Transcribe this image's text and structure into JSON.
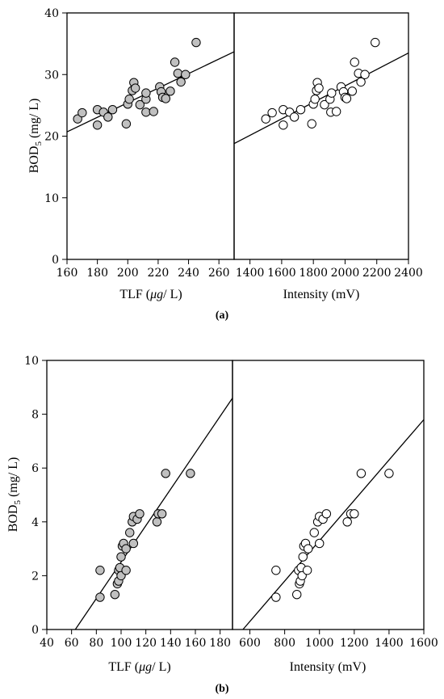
{
  "chart_data": [
    {
      "id": "a-left",
      "panel": "(a)",
      "type": "scatter",
      "xlabel": "TLF (μg/ L)",
      "xlabel_parts": {
        "pre": "TLF (",
        "unit": "μg",
        "post": "/ L)"
      },
      "ylabel": "BOD5 (mg/ L)",
      "ylabel_parts": {
        "pre": "BOD",
        "sub": "5",
        "post": " (mg/ L)"
      },
      "xlim": [
        160,
        270
      ],
      "ylim": [
        0,
        40
      ],
      "xticks": [
        160,
        180,
        200,
        220,
        240,
        260
      ],
      "yticks": [
        0,
        10,
        20,
        30,
        40
      ],
      "marker_fill": "#c0c0c0",
      "points": [
        [
          167,
          22.8
        ],
        [
          170,
          23.8
        ],
        [
          180,
          24.3
        ],
        [
          184,
          23.9
        ],
        [
          187,
          23.1
        ],
        [
          190,
          24.3
        ],
        [
          180,
          21.8
        ],
        [
          199,
          22.0
        ],
        [
          200,
          25.2
        ],
        [
          201,
          26.0
        ],
        [
          203,
          27.4
        ],
        [
          204,
          28.7
        ],
        [
          205,
          27.8
        ],
        [
          208,
          25.1
        ],
        [
          212,
          23.9
        ],
        [
          212,
          26.0
        ],
        [
          212,
          27.0
        ],
        [
          217,
          24.0
        ],
        [
          221,
          28.0
        ],
        [
          222,
          27.2
        ],
        [
          223,
          26.3
        ],
        [
          225,
          26.1
        ],
        [
          228,
          27.3
        ],
        [
          231,
          32.0
        ],
        [
          233,
          30.2
        ],
        [
          235,
          28.8
        ],
        [
          238,
          30.0
        ],
        [
          245,
          35.2
        ]
      ],
      "trendline": [
        [
          160,
          20.7
        ],
        [
          270,
          33.7
        ]
      ]
    },
    {
      "id": "a-right",
      "panel": "(a)",
      "type": "scatter",
      "xlabel": "Intensity (mV)",
      "xlim": [
        1300,
        2400
      ],
      "ylim": [
        0,
        40
      ],
      "xticks": [
        1400,
        1600,
        1800,
        2000,
        2200,
        2400
      ],
      "marker_fill": "#ffffff",
      "points": [
        [
          1500,
          22.8
        ],
        [
          1540,
          23.8
        ],
        [
          1610,
          24.3
        ],
        [
          1650,
          23.9
        ],
        [
          1680,
          23.1
        ],
        [
          1720,
          24.3
        ],
        [
          1610,
          21.8
        ],
        [
          1790,
          22.0
        ],
        [
          1800,
          25.2
        ],
        [
          1810,
          26.0
        ],
        [
          1820,
          27.4
        ],
        [
          1825,
          28.7
        ],
        [
          1835,
          27.8
        ],
        [
          1870,
          25.1
        ],
        [
          1910,
          23.9
        ],
        [
          1905,
          26.0
        ],
        [
          1915,
          27.0
        ],
        [
          1945,
          24.0
        ],
        [
          1975,
          28.0
        ],
        [
          1990,
          27.2
        ],
        [
          2000,
          26.3
        ],
        [
          2010,
          26.1
        ],
        [
          2045,
          27.3
        ],
        [
          2060,
          32.0
        ],
        [
          2085,
          30.2
        ],
        [
          2100,
          28.8
        ],
        [
          2125,
          30.0
        ],
        [
          2190,
          35.2
        ]
      ],
      "trendline": [
        [
          1300,
          18.8
        ],
        [
          2400,
          33.5
        ]
      ]
    },
    {
      "id": "b-left",
      "panel": "(b)",
      "type": "scatter",
      "xlabel": "TLF (μg/ L)",
      "xlabel_parts": {
        "pre": "TLF (",
        "unit": "μg",
        "post": "/ L)"
      },
      "ylabel": "BOD5 (mg/ L)",
      "ylabel_parts": {
        "pre": "BOD",
        "sub": "5",
        "post": " (mg/ L)"
      },
      "xlim": [
        40,
        190
      ],
      "ylim": [
        0,
        10
      ],
      "xticks": [
        40,
        60,
        80,
        100,
        120,
        140,
        160,
        180
      ],
      "yticks": [
        0,
        2,
        4,
        6,
        8,
        10
      ],
      "marker_fill": "#c0c0c0",
      "points": [
        [
          83,
          1.2
        ],
        [
          83,
          2.2
        ],
        [
          95,
          1.3
        ],
        [
          97,
          1.7
        ],
        [
          98,
          1.8
        ],
        [
          98,
          2.2
        ],
        [
          99,
          2.3
        ],
        [
          100,
          2.0
        ],
        [
          100,
          2.7
        ],
        [
          101,
          3.1
        ],
        [
          102,
          3.2
        ],
        [
          104,
          2.2
        ],
        [
          104,
          3.0
        ],
        [
          107,
          3.6
        ],
        [
          109,
          4.0
        ],
        [
          110,
          4.2
        ],
        [
          110,
          3.2
        ],
        [
          113,
          4.1
        ],
        [
          115,
          4.3
        ],
        [
          129,
          4.0
        ],
        [
          130,
          4.3
        ],
        [
          133,
          4.3
        ],
        [
          136,
          5.8
        ],
        [
          156,
          5.8
        ]
      ],
      "trendline": [
        [
          63,
          0.0
        ],
        [
          190,
          8.6
        ]
      ]
    },
    {
      "id": "b-right",
      "panel": "(b)",
      "type": "scatter",
      "xlabel": "Intensity (mV)",
      "xlim": [
        500,
        1600
      ],
      "ylim": [
        0,
        10
      ],
      "xticks": [
        600,
        800,
        1000,
        1200,
        1400,
        1600
      ],
      "marker_fill": "#ffffff",
      "points": [
        [
          750,
          1.2
        ],
        [
          750,
          2.2
        ],
        [
          870,
          1.3
        ],
        [
          885,
          1.7
        ],
        [
          890,
          1.8
        ],
        [
          880,
          2.2
        ],
        [
          895,
          2.3
        ],
        [
          900,
          2.0
        ],
        [
          905,
          2.7
        ],
        [
          910,
          3.1
        ],
        [
          920,
          3.2
        ],
        [
          930,
          2.2
        ],
        [
          935,
          3.0
        ],
        [
          970,
          3.6
        ],
        [
          990,
          4.0
        ],
        [
          1000,
          4.2
        ],
        [
          1000,
          3.2
        ],
        [
          1020,
          4.1
        ],
        [
          1040,
          4.3
        ],
        [
          1160,
          4.0
        ],
        [
          1180,
          4.3
        ],
        [
          1200,
          4.3
        ],
        [
          1240,
          5.8
        ],
        [
          1400,
          5.8
        ]
      ],
      "trendline": [
        [
          560,
          0.0
        ],
        [
          1600,
          7.8
        ]
      ]
    }
  ],
  "captions": {
    "a": "(a)",
    "b": "(b)"
  }
}
